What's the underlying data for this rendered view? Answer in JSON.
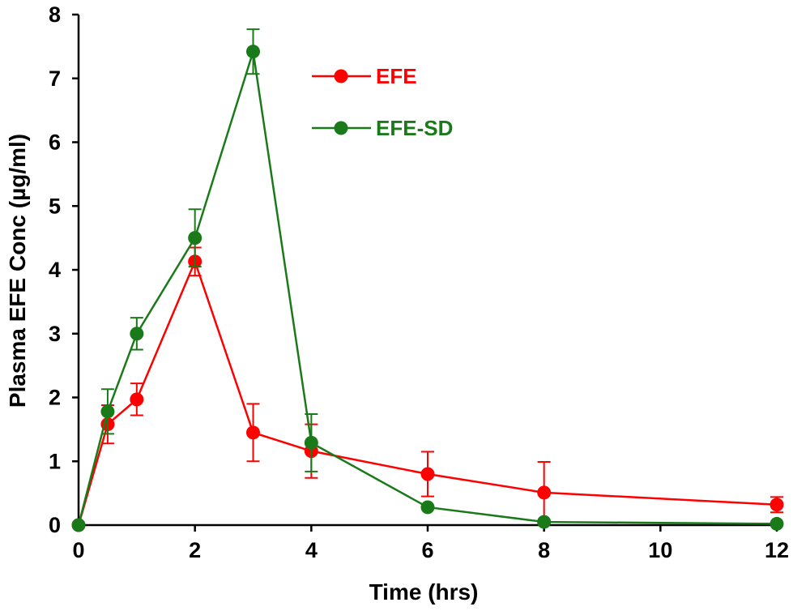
{
  "chart_data": {
    "type": "line",
    "title": "",
    "xlabel": "Time (hrs)",
    "ylabel": "Plasma EFE Conc (µg/ml)",
    "xlim": [
      0,
      12
    ],
    "ylim": [
      0,
      8
    ],
    "xticks": [
      0,
      2,
      4,
      6,
      8,
      10,
      12
    ],
    "yticks": [
      0,
      1,
      2,
      3,
      4,
      5,
      6,
      7,
      8
    ],
    "grid": false,
    "legend_position": "top-center",
    "series": [
      {
        "name": "EFE",
        "color": "#ff0000",
        "x": [
          0,
          0.5,
          1,
          2,
          3,
          4,
          6,
          8,
          12
        ],
        "y": [
          0,
          1.58,
          1.97,
          4.13,
          1.45,
          1.16,
          0.8,
          0.51,
          0.32
        ],
        "error": [
          0,
          0.3,
          0.25,
          0.22,
          0.45,
          0.42,
          0.35,
          0.48,
          0.12
        ]
      },
      {
        "name": "EFE-SD",
        "color": "#1a7a1a",
        "x": [
          0,
          0.5,
          1,
          2,
          3,
          4,
          6,
          8,
          12
        ],
        "y": [
          0,
          1.78,
          3.0,
          4.5,
          7.42,
          1.29,
          0.28,
          0.05,
          0.02
        ],
        "error": [
          0,
          0.35,
          0.25,
          0.45,
          0.35,
          0.45,
          0.0,
          0.0,
          0.0
        ]
      }
    ]
  }
}
